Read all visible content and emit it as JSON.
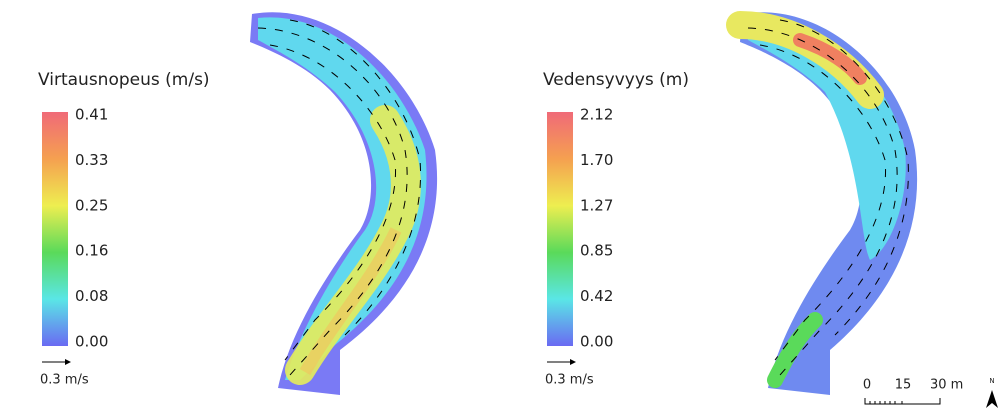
{
  "panels": [
    {
      "legend_title": "Virtausnopeus (m/s)",
      "labels": [
        "0.41",
        "0.33",
        "0.25",
        "0.16",
        "0.08",
        "0.00"
      ],
      "arrow_label": "0.3 m/s"
    },
    {
      "legend_title": "Vedensyvyys (m)",
      "labels": [
        "2.12",
        "1.70",
        "1.27",
        "0.85",
        "0.42",
        "0.00"
      ],
      "arrow_label": "0.3 m/s"
    }
  ],
  "scale_bar": {
    "labels": [
      "0",
      "15",
      "30 m"
    ]
  },
  "north": "N"
}
